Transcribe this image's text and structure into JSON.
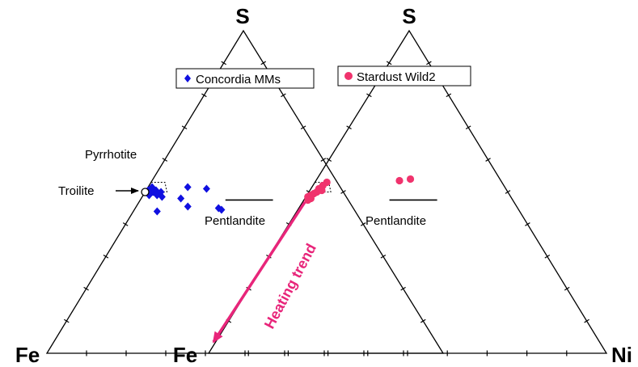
{
  "chart_data": [
    {
      "type": "scatter",
      "subtype": "ternary",
      "vertices": {
        "top": "S",
        "left": "Fe",
        "right": "Ni"
      },
      "series": [
        {
          "name": "Concordia MMs",
          "marker": "diamond",
          "color": "#1010e0",
          "points": [
            {
              "S": 0.505,
              "Ni": 0.005
            },
            {
              "S": 0.495,
              "Ni": 0.01
            },
            {
              "S": 0.51,
              "Ni": 0.015
            },
            {
              "S": 0.5,
              "Ni": 0.02
            },
            {
              "S": 0.49,
              "Ni": 0.015
            },
            {
              "S": 0.515,
              "Ni": 0.01
            },
            {
              "S": 0.505,
              "Ni": 0.025
            },
            {
              "S": 0.495,
              "Ni": 0.03
            },
            {
              "S": 0.49,
              "Ni": 0.035
            },
            {
              "S": 0.5,
              "Ni": 0.04
            },
            {
              "S": 0.485,
              "Ni": 0.05
            },
            {
              "S": 0.515,
              "Ni": 0.1
            },
            {
              "S": 0.48,
              "Ni": 0.1
            },
            {
              "S": 0.455,
              "Ni": 0.13
            },
            {
              "S": 0.44,
              "Ni": 0.06
            },
            {
              "S": 0.51,
              "Ni": 0.15
            },
            {
              "S": 0.45,
              "Ni": 0.21
            },
            {
              "S": 0.445,
              "Ni": 0.22
            }
          ]
        },
        {
          "name": "Stardust Wild2",
          "marker": "circle",
          "color": "#f0336d",
          "points": [
            {
              "S": 0.53,
              "Ni": 0.03
            },
            {
              "S": 0.52,
              "Ni": 0.025
            },
            {
              "S": 0.51,
              "Ni": 0.02
            },
            {
              "S": 0.5,
              "Ni": 0.02
            },
            {
              "S": 0.495,
              "Ni": 0.015
            },
            {
              "S": 0.49,
              "Ni": 0.01
            },
            {
              "S": 0.485,
              "Ni": 0.005
            },
            {
              "S": 0.48,
              "Ni": 0.015
            },
            {
              "S": 0.505,
              "Ni": 0.03
            },
            {
              "S": 0.475,
              "Ni": 0.01
            },
            {
              "S": 0.54,
              "Ni": 0.235
            },
            {
              "S": 0.535,
              "Ni": 0.21
            }
          ]
        }
      ],
      "reference": [
        {
          "label": "Pyrrhotite",
          "kind": "field"
        },
        {
          "label": "Troilite",
          "kind": "point",
          "S": 0.5,
          "Ni": 0.0
        },
        {
          "label": "Pentlandite",
          "kind": "segment"
        }
      ],
      "annotations": [
        "Heating trend"
      ],
      "ticks": 10
    }
  ],
  "labels": {
    "left_S": "S",
    "left_Fe": "Fe",
    "right_S": "S",
    "right_Fe": "Fe",
    "right_Ni": "Ni",
    "legend1": "Concordia MMs",
    "legend2": "Stardust Wild2",
    "pyrrhotite": "Pyrrhotite",
    "troilite": "Troilite",
    "pent1": "Pentlandite",
    "pent2": "Pentlandite",
    "trend": "Heating trend"
  },
  "colors": {
    "concordia": "#1010e0",
    "stardust": "#f0336d",
    "trend": "#e8257a"
  }
}
